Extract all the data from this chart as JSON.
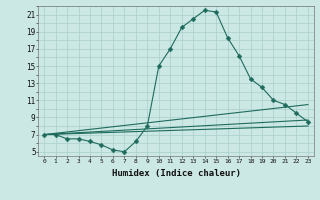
{
  "xlabel": "Humidex (Indice chaleur)",
  "bg_color": "#cce8e4",
  "grid_color": "#aacfcb",
  "line_color": "#1e6b5e",
  "xlim": [
    -0.5,
    23.5
  ],
  "ylim": [
    4.5,
    22
  ],
  "xticks": [
    0,
    1,
    2,
    3,
    4,
    5,
    6,
    7,
    8,
    9,
    10,
    11,
    12,
    13,
    14,
    15,
    16,
    17,
    18,
    19,
    20,
    21,
    22,
    23
  ],
  "yticks": [
    5,
    7,
    9,
    11,
    13,
    15,
    17,
    19,
    21
  ],
  "series1_x": [
    0,
    1,
    2,
    3,
    4,
    5,
    6,
    7,
    8,
    9,
    10,
    11,
    12,
    13,
    14,
    15,
    16,
    17,
    18,
    19,
    20,
    21,
    22,
    23
  ],
  "series1_y": [
    7,
    7,
    6.5,
    6.5,
    6.2,
    5.8,
    5.2,
    5,
    6.2,
    8,
    15,
    17,
    19.5,
    20.5,
    21.5,
    21.3,
    18.3,
    16.2,
    13.5,
    12.5,
    11,
    10.5,
    9.5,
    8.5
  ],
  "series2_x": [
    0,
    23
  ],
  "series2_y": [
    7,
    8
  ],
  "series3_x": [
    0,
    23
  ],
  "series3_y": [
    7,
    10.5
  ],
  "series4_x": [
    0,
    23
  ],
  "series4_y": [
    7,
    8.7
  ]
}
